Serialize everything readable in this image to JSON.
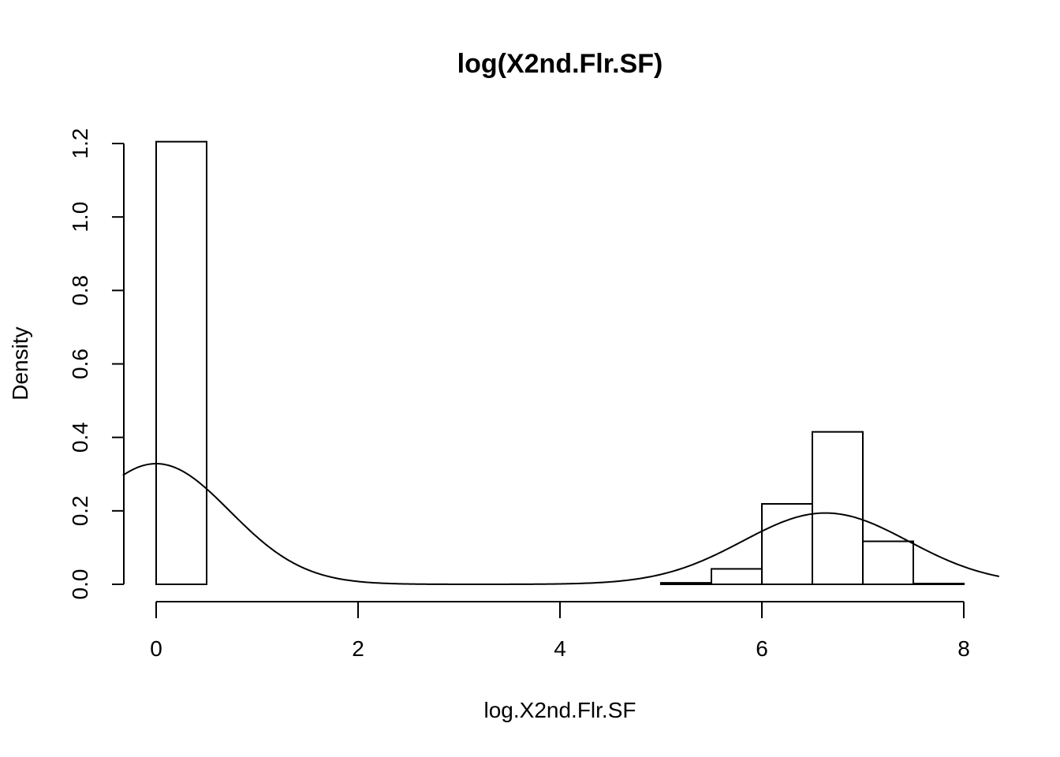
{
  "chart_data": {
    "type": "bar",
    "subtype": "histogram",
    "title": "log(X2nd.Flr.SF)",
    "xlabel": "log.X2nd.Flr.SF",
    "ylabel": "Density",
    "xlim": [
      0,
      8
    ],
    "ylim": [
      0,
      1.2
    ],
    "x_ticks": [
      "0",
      "2",
      "4",
      "6",
      "8"
    ],
    "y_ticks": [
      "0.0",
      "0.2",
      "0.4",
      "0.6",
      "0.8",
      "1.0",
      "1.2"
    ],
    "bins": [
      {
        "start": 0.0,
        "end": 0.5,
        "density": 1.205
      },
      {
        "start": 0.5,
        "end": 1.0,
        "density": 0
      },
      {
        "start": 1.0,
        "end": 1.5,
        "density": 0
      },
      {
        "start": 1.5,
        "end": 2.0,
        "density": 0
      },
      {
        "start": 2.0,
        "end": 2.5,
        "density": 0
      },
      {
        "start": 2.5,
        "end": 3.0,
        "density": 0
      },
      {
        "start": 3.0,
        "end": 3.5,
        "density": 0
      },
      {
        "start": 3.5,
        "end": 4.0,
        "density": 0
      },
      {
        "start": 4.0,
        "end": 4.5,
        "density": 0
      },
      {
        "start": 4.5,
        "end": 5.0,
        "density": 0
      },
      {
        "start": 5.0,
        "end": 5.5,
        "density": 0.004
      },
      {
        "start": 5.5,
        "end": 6.0,
        "density": 0.042
      },
      {
        "start": 6.0,
        "end": 6.5,
        "density": 0.219
      },
      {
        "start": 6.5,
        "end": 7.0,
        "density": 0.415
      },
      {
        "start": 7.0,
        "end": 7.5,
        "density": 0.117
      },
      {
        "start": 7.5,
        "end": 8.0,
        "density": 0.002
      }
    ],
    "density_curve": {
      "components": [
        {
          "weight": 0.601,
          "mean": 0.0,
          "sd": 0.73
        },
        {
          "weight": 0.399,
          "mean": 6.63,
          "sd": 0.82
        }
      ],
      "x_range": [
        -0.33,
        8.35
      ]
    },
    "grid": false,
    "legend": "none"
  }
}
